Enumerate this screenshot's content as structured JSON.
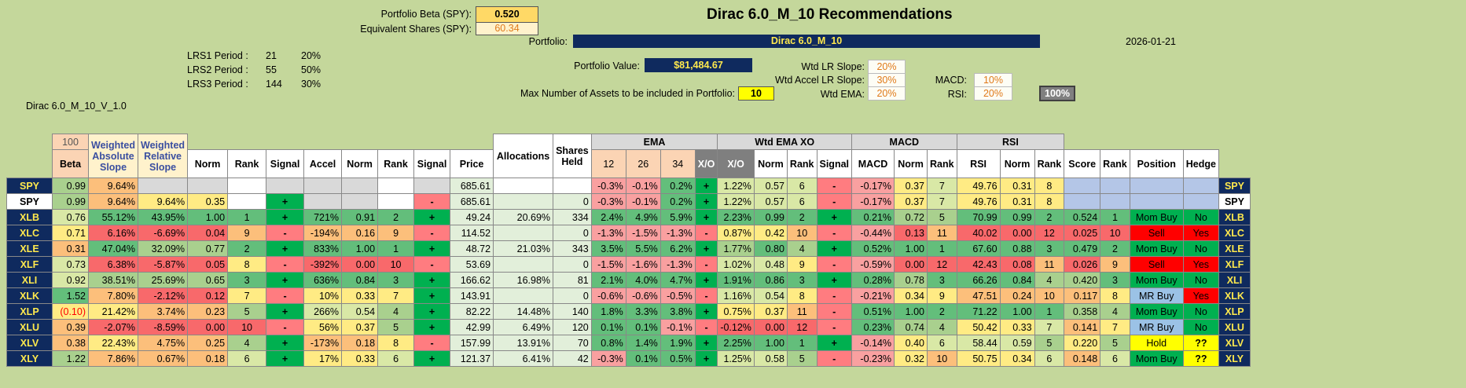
{
  "header": {
    "title": "Dirac 6.0_M_10 Recommendations",
    "date": "2026-01-21",
    "portfolio_beta_label": "Portfolio Beta (SPY):",
    "portfolio_beta": "0.520",
    "equiv_shares_label": "Equivalent Shares (SPY):",
    "equiv_shares": "60.34",
    "portfolio_label": "Portfolio:",
    "portfolio_name": "Dirac 6.0_M_10",
    "portfolio_value_label": "Portfolio Value:",
    "portfolio_value": "$81,484.67",
    "max_assets_label": "Max Number of Assets to be included in Portfolio:",
    "max_assets": "10",
    "version": "Dirac 6.0_M_10_V_1.0"
  },
  "lrs": [
    {
      "label": "LRS1 Period :",
      "period": "21",
      "pct": "20%"
    },
    {
      "label": "LRS2 Period :",
      "period": "55",
      "pct": "50%"
    },
    {
      "label": "LRS3 Period :",
      "period": "144",
      "pct": "30%"
    }
  ],
  "weights": {
    "wtd_lr_slope_label": "Wtd LR Slope:",
    "wtd_lr_slope": "20%",
    "wtd_accel_label": "Wtd Accel LR Slope:",
    "wtd_accel": "30%",
    "wtd_ema_label": "Wtd EMA:",
    "wtd_ema": "20%",
    "macd_label": "MACD:",
    "macd": "10%",
    "rsi_label": "RSI:",
    "rsi": "20%",
    "total": "100%"
  },
  "columns": {
    "hundred": "100",
    "beta": "Beta",
    "weighted_abs_slope": "Weighted Absolute Slope",
    "weighted_rel_slope": "Weighted Relative Slope",
    "norm": "Norm",
    "rank": "Rank",
    "signal": "Signal",
    "accel": "Accel",
    "price": "Price",
    "allocations": "Allocations",
    "shares_held": "Shares Held",
    "ema": "EMA",
    "ema12": "12",
    "ema26": "26",
    "ema34": "34",
    "xo": "X/O",
    "wtd_ema_xo": "Wtd EMA XO",
    "macd": "MACD",
    "rsi": "RSI",
    "score": "Score",
    "position": "Position",
    "hedge": "Hedge"
  },
  "rows": [
    {
      "t": "SPY",
      "beta": "0.99",
      "was": "9.64%",
      "wrs": "",
      "n1": "",
      "r1": "",
      "s1": "",
      "acc": "",
      "n2": "",
      "r2": "",
      "s2": "",
      "price": "685.61",
      "alloc": "",
      "sh": "",
      "e12": "-0.3%",
      "e26": "-0.1%",
      "e34": "0.2%",
      "xo": "+",
      "wx": "1.22%",
      "n3": "0.57",
      "r3": "6",
      "s3": "-",
      "macd": "-0.17%",
      "n4": "0.37",
      "r4": "7",
      "rsi": "49.76",
      "n5": "0.31",
      "r5": "8",
      "score": "",
      "rk": "",
      "pos": "",
      "hedge": ""
    },
    {
      "t": "SPY",
      "beta": "0.99",
      "was": "9.64%",
      "wrs": "9.64%",
      "n1": "0.35",
      "r1": "",
      "s1": "+",
      "acc": "",
      "n2": "",
      "r2": "",
      "s2": "-",
      "price": "685.61",
      "alloc": "",
      "sh": "0",
      "e12": "-0.3%",
      "e26": "-0.1%",
      "e34": "0.2%",
      "xo": "+",
      "wx": "1.22%",
      "n3": "0.57",
      "r3": "6",
      "s3": "-",
      "macd": "-0.17%",
      "n4": "0.37",
      "r4": "7",
      "rsi": "49.76",
      "n5": "0.31",
      "r5": "8",
      "score": "",
      "rk": "",
      "pos": "",
      "hedge": ""
    },
    {
      "t": "XLB",
      "beta": "0.76",
      "was": "55.12%",
      "wrs": "43.95%",
      "n1": "1.00",
      "r1": "1",
      "s1": "+",
      "acc": "721%",
      "n2": "0.91",
      "r2": "2",
      "s2": "+",
      "price": "49.24",
      "alloc": "20.69%",
      "sh": "334",
      "e12": "2.4%",
      "e26": "4.9%",
      "e34": "5.9%",
      "xo": "+",
      "wx": "2.23%",
      "n3": "0.99",
      "r3": "2",
      "s3": "+",
      "macd": "0.21%",
      "n4": "0.72",
      "r4": "5",
      "rsi": "70.99",
      "n5": "0.99",
      "r5": "2",
      "score": "0.524",
      "rk": "1",
      "pos": "Mom Buy",
      "hedge": "No"
    },
    {
      "t": "XLC",
      "beta": "0.71",
      "was": "6.16%",
      "wrs": "-6.69%",
      "n1": "0.04",
      "r1": "9",
      "s1": "-",
      "acc": "-194%",
      "n2": "0.16",
      "r2": "9",
      "s2": "-",
      "price": "114.52",
      "alloc": "",
      "sh": "0",
      "e12": "-1.3%",
      "e26": "-1.5%",
      "e34": "-1.3%",
      "xo": "-",
      "wx": "0.87%",
      "n3": "0.42",
      "r3": "10",
      "s3": "-",
      "macd": "-0.44%",
      "n4": "0.13",
      "r4": "11",
      "rsi": "40.02",
      "n5": "0.00",
      "r5": "12",
      "score": "0.025",
      "rk": "10",
      "pos": "Sell",
      "hedge": "Yes"
    },
    {
      "t": "XLE",
      "beta": "0.31",
      "was": "47.04%",
      "wrs": "32.09%",
      "n1": "0.77",
      "r1": "2",
      "s1": "+",
      "acc": "833%",
      "n2": "1.00",
      "r2": "1",
      "s2": "+",
      "price": "48.72",
      "alloc": "21.03%",
      "sh": "343",
      "e12": "3.5%",
      "e26": "5.5%",
      "e34": "6.2%",
      "xo": "+",
      "wx": "1.77%",
      "n3": "0.80",
      "r3": "4",
      "s3": "+",
      "macd": "0.52%",
      "n4": "1.00",
      "r4": "1",
      "rsi": "67.60",
      "n5": "0.88",
      "r5": "3",
      "score": "0.479",
      "rk": "2",
      "pos": "Mom Buy",
      "hedge": "No"
    },
    {
      "t": "XLF",
      "beta": "0.73",
      "was": "6.38%",
      "wrs": "-5.87%",
      "n1": "0.05",
      "r1": "8",
      "s1": "-",
      "acc": "-392%",
      "n2": "0.00",
      "r2": "10",
      "s2": "-",
      "price": "53.69",
      "alloc": "",
      "sh": "0",
      "e12": "-1.5%",
      "e26": "-1.6%",
      "e34": "-1.3%",
      "xo": "-",
      "wx": "1.02%",
      "n3": "0.48",
      "r3": "9",
      "s3": "-",
      "macd": "-0.59%",
      "n4": "0.00",
      "r4": "12",
      "rsi": "42.43",
      "n5": "0.08",
      "r5": "11",
      "score": "0.026",
      "rk": "9",
      "pos": "Sell",
      "hedge": "Yes"
    },
    {
      "t": "XLI",
      "beta": "0.92",
      "was": "38.51%",
      "wrs": "25.69%",
      "n1": "0.65",
      "r1": "3",
      "s1": "+",
      "acc": "636%",
      "n2": "0.84",
      "r2": "3",
      "s2": "+",
      "price": "166.62",
      "alloc": "16.98%",
      "sh": "81",
      "e12": "2.1%",
      "e26": "4.0%",
      "e34": "4.7%",
      "xo": "+",
      "wx": "1.91%",
      "n3": "0.86",
      "r3": "3",
      "s3": "+",
      "macd": "0.28%",
      "n4": "0.78",
      "r4": "3",
      "rsi": "66.26",
      "n5": "0.84",
      "r5": "4",
      "score": "0.420",
      "rk": "3",
      "pos": "Mom Buy",
      "hedge": "No"
    },
    {
      "t": "XLK",
      "beta": "1.52",
      "was": "7.80%",
      "wrs": "-2.12%",
      "n1": "0.12",
      "r1": "7",
      "s1": "-",
      "acc": "10%",
      "n2": "0.33",
      "r2": "7",
      "s2": "+",
      "price": "143.91",
      "alloc": "",
      "sh": "0",
      "e12": "-0.6%",
      "e26": "-0.6%",
      "e34": "-0.5%",
      "xo": "-",
      "wx": "1.16%",
      "n3": "0.54",
      "r3": "8",
      "s3": "-",
      "macd": "-0.21%",
      "n4": "0.34",
      "r4": "9",
      "rsi": "47.51",
      "n5": "0.24",
      "r5": "10",
      "score": "0.117",
      "rk": "8",
      "pos": "MR Buy",
      "hedge": "Yes"
    },
    {
      "t": "XLP",
      "beta": "(0.10)",
      "was": "21.42%",
      "wrs": "3.74%",
      "n1": "0.23",
      "r1": "5",
      "s1": "+",
      "acc": "266%",
      "n2": "0.54",
      "r2": "4",
      "s2": "+",
      "price": "82.22",
      "alloc": "14.48%",
      "sh": "140",
      "e12": "1.8%",
      "e26": "3.3%",
      "e34": "3.8%",
      "xo": "+",
      "wx": "0.75%",
      "n3": "0.37",
      "r3": "11",
      "s3": "-",
      "macd": "0.51%",
      "n4": "1.00",
      "r4": "2",
      "rsi": "71.22",
      "n5": "1.00",
      "r5": "1",
      "score": "0.358",
      "rk": "4",
      "pos": "Mom Buy",
      "hedge": "No"
    },
    {
      "t": "XLU",
      "beta": "0.39",
      "was": "-2.07%",
      "wrs": "-8.59%",
      "n1": "0.00",
      "r1": "10",
      "s1": "-",
      "acc": "56%",
      "n2": "0.37",
      "r2": "5",
      "s2": "+",
      "price": "42.99",
      "alloc": "6.49%",
      "sh": "120",
      "e12": "0.1%",
      "e26": "0.1%",
      "e34": "-0.1%",
      "xo": "-",
      "wx": "-0.12%",
      "n3": "0.00",
      "r3": "12",
      "s3": "-",
      "macd": "0.23%",
      "n4": "0.74",
      "r4": "4",
      "rsi": "50.42",
      "n5": "0.33",
      "r5": "7",
      "score": "0.141",
      "rk": "7",
      "pos": "MR Buy",
      "hedge": "No"
    },
    {
      "t": "XLV",
      "beta": "0.38",
      "was": "22.43%",
      "wrs": "4.75%",
      "n1": "0.25",
      "r1": "4",
      "s1": "+",
      "acc": "-173%",
      "n2": "0.18",
      "r2": "8",
      "s2": "-",
      "price": "157.99",
      "alloc": "13.91%",
      "sh": "70",
      "e12": "0.8%",
      "e26": "1.4%",
      "e34": "1.9%",
      "xo": "+",
      "wx": "2.25%",
      "n3": "1.00",
      "r3": "1",
      "s3": "+",
      "macd": "-0.14%",
      "n4": "0.40",
      "r4": "6",
      "rsi": "58.44",
      "n5": "0.59",
      "r5": "5",
      "score": "0.220",
      "rk": "5",
      "pos": "Hold",
      "hedge": "??"
    },
    {
      "t": "XLY",
      "beta": "1.22",
      "was": "7.86%",
      "wrs": "0.67%",
      "n1": "0.18",
      "r1": "6",
      "s1": "+",
      "acc": "17%",
      "n2": "0.33",
      "r2": "6",
      "s2": "+",
      "price": "121.37",
      "alloc": "6.41%",
      "sh": "42",
      "e12": "-0.3%",
      "e26": "0.1%",
      "e34": "0.5%",
      "xo": "+",
      "wx": "1.25%",
      "n3": "0.58",
      "r3": "5",
      "s3": "-",
      "macd": "-0.23%",
      "n4": "0.32",
      "r4": "10",
      "rsi": "50.75",
      "n5": "0.34",
      "r5": "6",
      "score": "0.148",
      "rk": "6",
      "pos": "Mom Buy",
      "hedge": "??"
    }
  ]
}
